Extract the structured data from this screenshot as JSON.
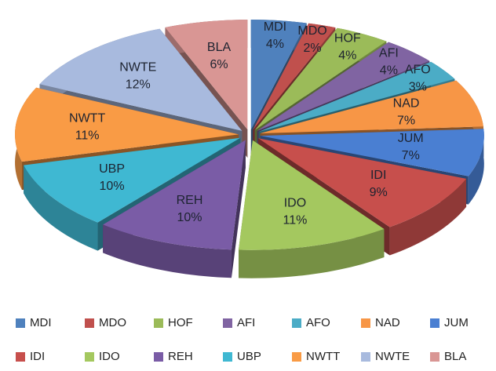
{
  "chart_data": {
    "type": "pie",
    "categories": [
      "MDI",
      "MDO",
      "HOF",
      "AFI",
      "AFO",
      "NAD",
      "JUM",
      "IDI",
      "IDO",
      "REH",
      "UBP",
      "NWTT",
      "NWTE",
      "BLA"
    ],
    "values": [
      4,
      2,
      4,
      4,
      3,
      7,
      7,
      9,
      11,
      10,
      10,
      11,
      12,
      6
    ],
    "value_labels": [
      "4%",
      "2%",
      "4%",
      "4%",
      "3%",
      "7%",
      "7%",
      "9%",
      "11%",
      "10%",
      "10%",
      "11%",
      "12%",
      "6%"
    ],
    "colors": [
      "#4f81bd",
      "#c0504d",
      "#9bbb59",
      "#8064a2",
      "#4bacc6",
      "#f79646",
      "#4a7fd2",
      "#c74f4c",
      "#a4c85f",
      "#7a5ca6",
      "#3fb8d2",
      "#f99b45",
      "#a8bade",
      "#d99694"
    ],
    "legend": "bottom"
  }
}
